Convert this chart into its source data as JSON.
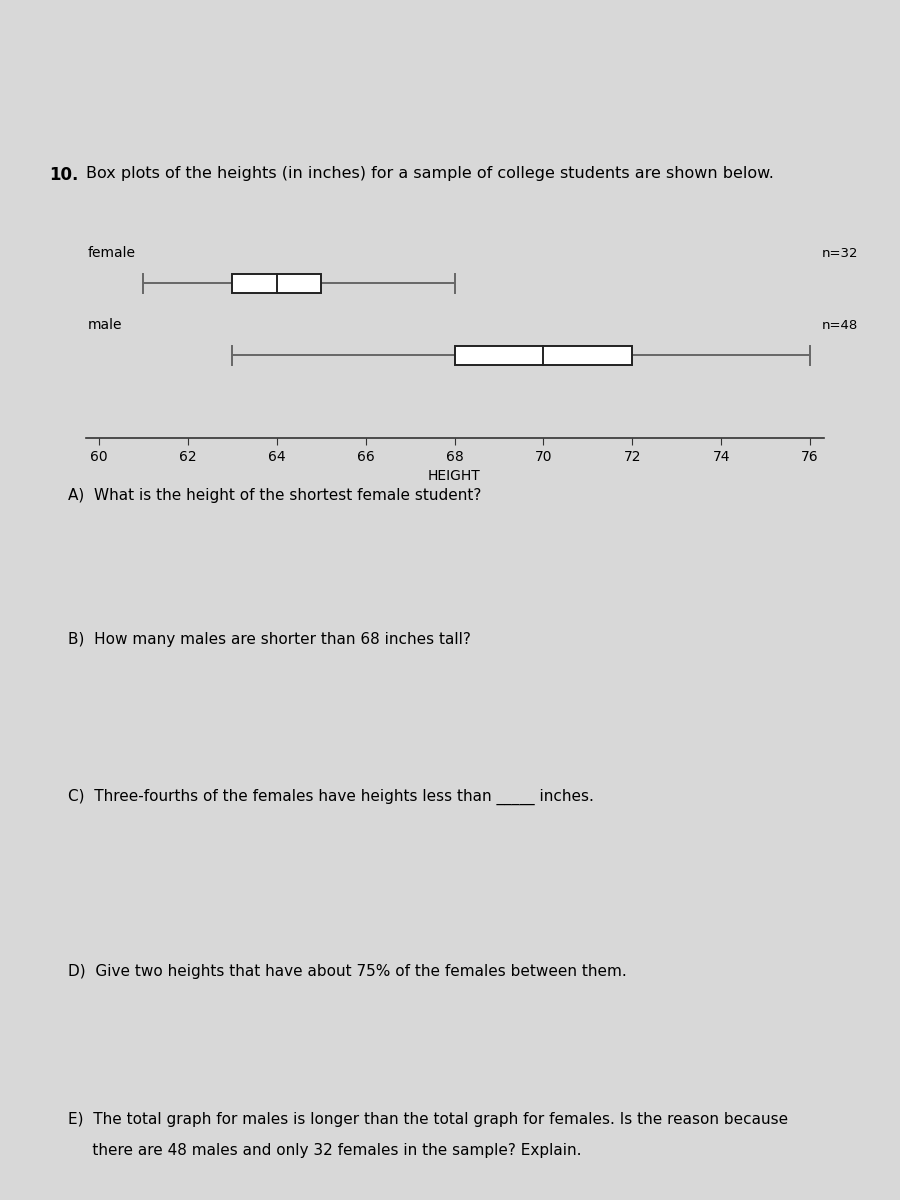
{
  "title_num": "10.",
  "title_text": "Box plots of the heights (in inches) for a sample of college students are shown below.",
  "female": {
    "whisker_low": 61,
    "q1": 63,
    "median": 64,
    "q3": 65,
    "whisker_high": 68,
    "label": "female",
    "n_label": "n=32"
  },
  "male": {
    "whisker_low": 63,
    "q1": 68,
    "median": 70,
    "q3": 72,
    "whisker_high": 76,
    "label": "male",
    "n_label": "n=48"
  },
  "xmin": 60,
  "xmax": 76,
  "xticks": [
    60,
    62,
    64,
    66,
    68,
    70,
    72,
    74,
    76
  ],
  "xlabel": "HEIGHT",
  "bg_color": "#d8d8d8",
  "box_color": "white",
  "whisker_color": "#666666",
  "box_edge_color": "#222222",
  "q_A": "A)  What is the height of the shortest female student?",
  "q_B": "B)  How many males are shorter than 68 inches tall?",
  "q_C": "C)  Three-fourths of the females have heights less than _____ inches.",
  "q_D": "D)  Give two heights that have about 75% of the females between them.",
  "q_E_line1": "E)  The total graph for males is longer than the total graph for females. Is the reason because",
  "q_E_line2": "     there are 48 males and only 32 females in the sample? Explain."
}
